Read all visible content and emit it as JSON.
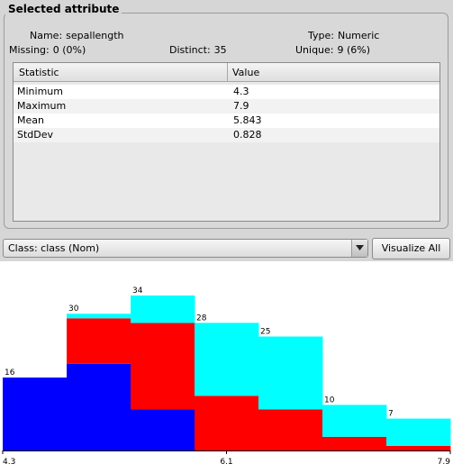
{
  "panel": {
    "title": "Selected attribute",
    "name_label": "Name:",
    "name_value": "sepallength",
    "type_label": "Type:",
    "type_value": "Numeric",
    "missing_label": "Missing:",
    "missing_value": "0 (0%)",
    "distinct_label": "Distinct:",
    "distinct_value": "35",
    "unique_label": "Unique:",
    "unique_value": "9 (6%)"
  },
  "table": {
    "headers": [
      "Statistic",
      "Value"
    ],
    "rows": [
      {
        "stat": "Minimum",
        "value": "4.3"
      },
      {
        "stat": "Maximum",
        "value": "7.9"
      },
      {
        "stat": "Mean",
        "value": "5.843"
      },
      {
        "stat": "StdDev",
        "value": "0.828"
      }
    ]
  },
  "class_selector": {
    "selected": "Class: class (Nom)"
  },
  "visualize_button": {
    "label": "Visualize All"
  },
  "colors": {
    "class1": "#0000ff",
    "class2": "#ff0000",
    "class3": "#00ffff"
  },
  "chart_data": {
    "type": "bar",
    "stacked": true,
    "categories": [
      "bin1",
      "bin2",
      "bin3",
      "bin4",
      "bin5",
      "bin6",
      "bin7"
    ],
    "series": [
      {
        "values": [
          16,
          19,
          9,
          0,
          0,
          0,
          0
        ]
      },
      {
        "values": [
          0,
          10,
          19,
          12,
          9,
          3,
          1
        ]
      },
      {
        "values": [
          0,
          1,
          6,
          16,
          16,
          7,
          6
        ]
      }
    ],
    "totals": [
      16,
      30,
      34,
      28,
      25,
      10,
      7
    ],
    "x_ticks": [
      "4.3",
      "6.1",
      "7.9"
    ],
    "xlim": [
      4.3,
      7.9
    ],
    "ylim": [
      0,
      34
    ]
  }
}
